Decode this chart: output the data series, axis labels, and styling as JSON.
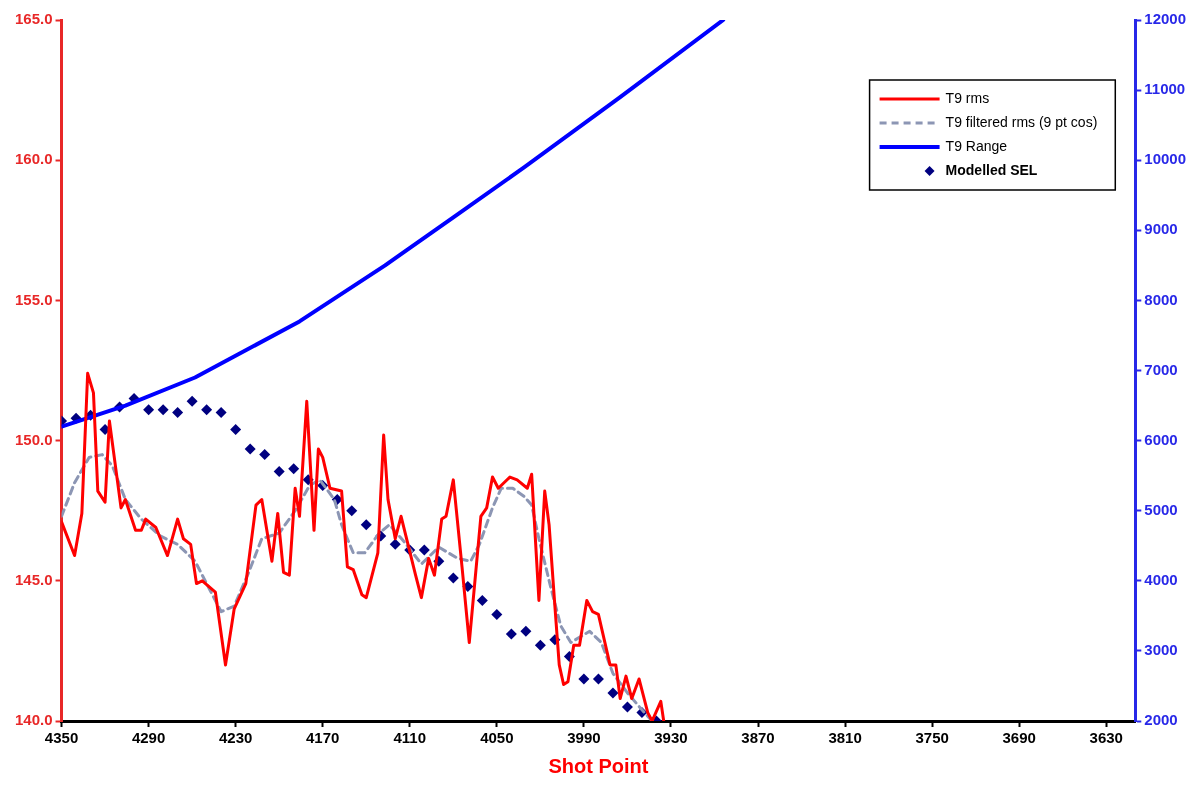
{
  "chart_data": {
    "type": "line",
    "xlabel": "Shot Point",
    "xlim": [
      4350,
      3610
    ],
    "xticks": [
      4350,
      4290,
      4230,
      4170,
      4110,
      4050,
      3990,
      3930,
      3870,
      3810,
      3750,
      3690,
      3630
    ],
    "ylim": [
      140,
      165
    ],
    "yticks": [
      {
        "value": 140,
        "label": "140.0"
      },
      {
        "value": 145,
        "label": "145.0"
      },
      {
        "value": 150,
        "label": "150.0"
      },
      {
        "value": 155,
        "label": "155.0"
      },
      {
        "value": 160,
        "label": "160.0"
      },
      {
        "value": 165,
        "label": "165.0"
      }
    ],
    "y2lim": [
      2000,
      12000
    ],
    "y2ticks": [
      2000,
      3000,
      4000,
      5000,
      6000,
      7000,
      8000,
      9000,
      10000,
      11000,
      12000
    ],
    "grid": false,
    "legend": "top right",
    "series": [
      {
        "name": "T9 rms",
        "color": "#ff0000",
        "marker": "none",
        "line_style": "solid",
        "x": [
          4350,
          4341,
          4336,
          4332,
          4328,
          4325,
          4320,
          4317,
          4309,
          4306,
          4299,
          4295,
          4292,
          4285,
          4277,
          4270,
          4266,
          4261,
          4257,
          4253,
          4244,
          4237,
          4231,
          4223,
          4216,
          4212,
          4205,
          4201,
          4197,
          4193,
          4189,
          4186,
          4181,
          4176,
          4173,
          4170,
          4165,
          4157,
          4153,
          4149,
          4143,
          4140,
          4132,
          4128,
          4125,
          4120,
          4116,
          4106,
          4102,
          4097,
          4093,
          4088,
          4085,
          4080,
          4074,
          4069,
          4061,
          4057,
          4053,
          4049,
          4041,
          4036,
          4029,
          4026,
          4021,
          4017,
          4014,
          4010,
          4007,
          4004,
          4001,
          3997,
          3993,
          3988,
          3984,
          3980,
          3972,
          3968,
          3965,
          3961,
          3957,
          3952,
          3946,
          3943,
          3937,
          3935
        ],
        "values": [
          147.1,
          145.9,
          147.4,
          152.4,
          151.7,
          148.2,
          147.8,
          150.7,
          147.6,
          147.9,
          146.8,
          146.8,
          147.2,
          146.9,
          145.9,
          147.2,
          146.5,
          146.3,
          144.9,
          145.0,
          144.6,
          142.0,
          144.0,
          144.9,
          147.7,
          147.9,
          145.7,
          147.4,
          145.3,
          145.2,
          148.3,
          147.3,
          151.4,
          146.8,
          149.7,
          149.4,
          148.3,
          148.2,
          145.5,
          145.4,
          144.5,
          144.4,
          146.0,
          150.2,
          147.9,
          146.5,
          147.3,
          145.2,
          144.4,
          145.8,
          145.2,
          147.2,
          147.3,
          148.6,
          145.5,
          142.8,
          147.3,
          147.6,
          148.7,
          148.3,
          148.7,
          148.6,
          148.3,
          148.8,
          144.3,
          148.2,
          147.0,
          144.1,
          142.0,
          141.3,
          141.4,
          142.7,
          142.7,
          144.3,
          143.9,
          143.8,
          142.0,
          142.0,
          140.8,
          141.6,
          140.8,
          141.5,
          140.3,
          140.0,
          140.7,
          140.0
        ]
      },
      {
        "name": "T9 filtered rms (9 pt cos)",
        "color": "#8c96b4",
        "marker": "none",
        "line_style": "dashed",
        "x": [
          4350,
          4341,
          4331,
          4322,
          4315,
          4306,
          4295,
          4282,
          4270,
          4258,
          4248,
          4240,
          4231,
          4221,
          4212,
          4200,
          4189,
          4179,
          4172,
          4162,
          4157,
          4149,
          4141,
          4131,
          4124,
          4114,
          4102,
          4090,
          4077,
          4068,
          4062,
          4053,
          4047,
          4039,
          4031,
          4026,
          4021,
          4013,
          4006,
          3999,
          3986,
          3978,
          3970,
          3960,
          3950,
          3943
        ],
        "values": [
          147.3,
          148.5,
          149.4,
          149.5,
          149.1,
          147.9,
          147.2,
          146.6,
          146.3,
          145.7,
          144.7,
          143.9,
          144.1,
          145.3,
          146.5,
          146.7,
          147.5,
          148.4,
          148.6,
          147.9,
          147.0,
          146.0,
          146.0,
          146.7,
          147.0,
          146.4,
          145.6,
          146.2,
          145.8,
          145.7,
          146.3,
          147.6,
          148.3,
          148.3,
          148.0,
          147.7,
          146.5,
          144.8,
          143.4,
          142.8,
          143.2,
          142.8,
          141.7,
          141.0,
          140.4,
          140.0
        ]
      },
      {
        "name": "T9 Range",
        "axis": "y2",
        "color": "#0000ff",
        "marker": "none",
        "line_style": "solid",
        "x": [
          4350,
          4306,
          4258,
          4186,
          4127,
          4079,
          4031,
          3965,
          3894
        ],
        "values": [
          6200,
          6500,
          6900,
          7700,
          8500,
          9200,
          9900,
          10900,
          12000
        ]
      },
      {
        "name": "Modelled SEL",
        "type": "scatter",
        "color": "#000080",
        "marker": "diamond",
        "x": [
          4350,
          4340,
          4330,
          4320,
          4310,
          4300,
          4290,
          4280,
          4270,
          4260,
          4250,
          4240,
          4230,
          4220,
          4210,
          4200,
          4190,
          4180,
          4170,
          4160,
          4150,
          4140,
          4130,
          4120,
          4110,
          4100,
          4090,
          4080,
          4070,
          4060,
          4050,
          4040,
          4030,
          4020,
          4010,
          4000,
          3990,
          3980,
          3970,
          3960,
          3950,
          3940
        ],
        "values": [
          150.7,
          150.8,
          150.9,
          150.4,
          151.2,
          151.5,
          151.1,
          151.1,
          151.0,
          151.4,
          151.1,
          151.0,
          150.4,
          149.7,
          149.5,
          148.9,
          149.0,
          148.6,
          148.4,
          147.9,
          147.5,
          147.0,
          146.6,
          146.3,
          146.1,
          146.1,
          145.7,
          145.1,
          144.8,
          144.3,
          143.8,
          143.1,
          143.2,
          142.7,
          142.9,
          142.3,
          141.5,
          141.5,
          141.0,
          140.5,
          140.3,
          140.0
        ]
      }
    ]
  }
}
